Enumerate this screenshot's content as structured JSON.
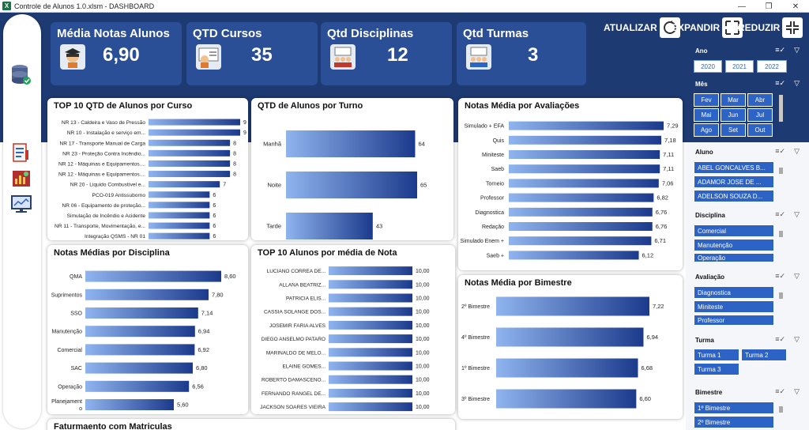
{
  "window": {
    "title": "Controle de Alunos 1.0.xlsm - DASHBOARD",
    "app_icon": "X"
  },
  "kpis": [
    {
      "title": "Média Notas Alunos",
      "value": "6,90"
    },
    {
      "title": "QTD Cursos",
      "value": "35"
    },
    {
      "title": "Qtd Disciplinas",
      "value": "12"
    },
    {
      "title": "Qtd Turmas",
      "value": "3"
    }
  ],
  "actions": {
    "atualizar": "ATUALIZAR",
    "expandir": "EXPANDIR",
    "reduzir": "REDUZIR"
  },
  "colors": {
    "band": "#1e3a72",
    "card": "#2b4f96",
    "bar_start": "#8fb4ee",
    "bar_end": "#1c3a8c",
    "slicer": "#2e63c6"
  },
  "chart_data": [
    {
      "type": "bar",
      "orientation": "horizontal",
      "title": "TOP 10 QTD de Alunos por Curso",
      "categories": [
        "NR 13 - Caldeira e Vaso de Pressão",
        "NR 10 - Instalação e serviço em...",
        "NR 17 - Transporte Manual de Carga",
        "NR 23 - Proteção Contra Incêndio...",
        "NR 12 - Máquinas e Equipamentos....",
        "NR 12 - Máquinas e Equipamentos....",
        "NR 20 - Liquido Combustível e...",
        "PCO-019 Antissuborno",
        "NR 06 - Equipamento de proteção...",
        "Simulação de Incêndio e Acidente",
        "NR 11 - Transporte, Movimentação, e...",
        "Integração  QSMS -  NR 01"
      ],
      "values": [
        9,
        9,
        8,
        8,
        8,
        8,
        7,
        6,
        6,
        6,
        6,
        6
      ],
      "labels": [
        "9",
        "9",
        "8",
        "8",
        "8",
        "8",
        "7",
        "6",
        "6",
        "6",
        "6",
        "6"
      ],
      "xlim": [
        0,
        9
      ]
    },
    {
      "type": "bar",
      "orientation": "horizontal",
      "title": "QTD de Alunos por Turno",
      "categories": [
        "Manhã",
        "Noite",
        "Tarde"
      ],
      "values": [
        64,
        65,
        43
      ],
      "labels": [
        "64",
        "65",
        "43"
      ],
      "xlim": [
        0,
        65
      ]
    },
    {
      "type": "bar",
      "orientation": "horizontal",
      "title": "Notas Média por Avaliações",
      "categories": [
        "Simulado + EFA",
        "Quis",
        "Miniteste",
        "Saeb",
        "Torneio",
        "Professor",
        "Diagnostica",
        "Redação",
        "Simulado Enem +",
        "Saeb +"
      ],
      "values": [
        7.29,
        7.18,
        7.11,
        7.11,
        7.06,
        6.82,
        6.76,
        6.76,
        6.71,
        6.12
      ],
      "labels": [
        "7,29",
        "7,18",
        "7,11",
        "7,11",
        "7,06",
        "6,82",
        "6,76",
        "6,76",
        "6,71",
        "6,12"
      ],
      "xlim": [
        0,
        7.29
      ]
    },
    {
      "type": "bar",
      "orientation": "horizontal",
      "title": "Notas Médias por Disciplina",
      "categories": [
        "QMA",
        "Suprimentos",
        "SSO",
        "Manutenção",
        "Comercial",
        "SAC",
        "Operação",
        "Planejament o"
      ],
      "values": [
        8.6,
        7.8,
        7.14,
        6.94,
        6.92,
        6.8,
        6.56,
        5.6
      ],
      "labels": [
        "8,60",
        "7,80",
        "7,14",
        "6,94",
        "6,92",
        "6,80",
        "6,56",
        "5,60"
      ],
      "xlim": [
        0,
        8.6
      ]
    },
    {
      "type": "bar",
      "orientation": "horizontal",
      "title": "TOP 10 Alunos por média de Nota",
      "categories": [
        "LUCIANO CORREA DE...",
        "ALLANA BEATRIZ...",
        "PATRICIA ELIS...",
        "CASSIA SOLANGE DOS...",
        "JOSEMIR FARIA ALVES",
        "DIEGO ANSELMO PATARO",
        "MARINALDO DE MELO...",
        "ELAINE GOMES...",
        "ROBERTO DAMASCENO...",
        "FERNANDO RANGEL DE...",
        "JACKSON SOARES VIEIRA"
      ],
      "values": [
        10,
        10,
        10,
        10,
        10,
        10,
        10,
        10,
        10,
        10,
        10
      ],
      "labels": [
        "10,00",
        "10,00",
        "10,00",
        "10,00",
        "10,00",
        "10,00",
        "10,00",
        "10,00",
        "10,00",
        "10,00",
        "10,00"
      ],
      "xlim": [
        0,
        10
      ]
    },
    {
      "type": "bar",
      "orientation": "horizontal",
      "title": "Notas Média por Bimestre",
      "categories": [
        "2º Bimestre",
        "4º Bimestre",
        "1º Bimestre",
        "3º Bimestre"
      ],
      "values": [
        7.22,
        6.94,
        6.68,
        6.6
      ],
      "labels": [
        "7,22",
        "6,94",
        "6,68",
        "6,60"
      ],
      "xlim": [
        0,
        7.22
      ]
    }
  ],
  "bottom_panel": {
    "title": "Faturmaento com Matriculas"
  },
  "slicers": {
    "ano": {
      "title": "Ano",
      "items": [
        "2020",
        "2021",
        "2022"
      ]
    },
    "mes": {
      "title": "Mês",
      "items": [
        "Fev",
        "Mar",
        "Abr",
        "Mai",
        "Jun",
        "Jul",
        "Ago",
        "Set",
        "Out"
      ]
    },
    "aluno": {
      "title": "Aluno",
      "items": [
        "ABEL GONCALVES B...",
        "ADAMOR JOSE DE ...",
        "ADELSON SOUZA D..."
      ]
    },
    "disciplina": {
      "title": "Disciplina",
      "items": [
        "Comercial",
        "Manutenção",
        "Operação"
      ]
    },
    "avaliacao": {
      "title": "Avaliação",
      "items": [
        "Diagnostica",
        "Miniteste",
        "Professor"
      ]
    },
    "turma": {
      "title": "Turma",
      "items": [
        "Turma 1",
        "Turma 2",
        "Turma 3"
      ]
    },
    "bimestre": {
      "title": "Bimestre",
      "items": [
        "1º Bimestre",
        "2º Bimestre"
      ]
    }
  },
  "icons": [
    "excel-icon",
    "database-icon",
    "form-icon",
    "report-icon",
    "monitor-icon",
    "student-icon",
    "teacher-icon",
    "refresh-icon",
    "expand-icon",
    "reduce-icon",
    "multiselect-icon",
    "clear-filter-icon"
  ]
}
